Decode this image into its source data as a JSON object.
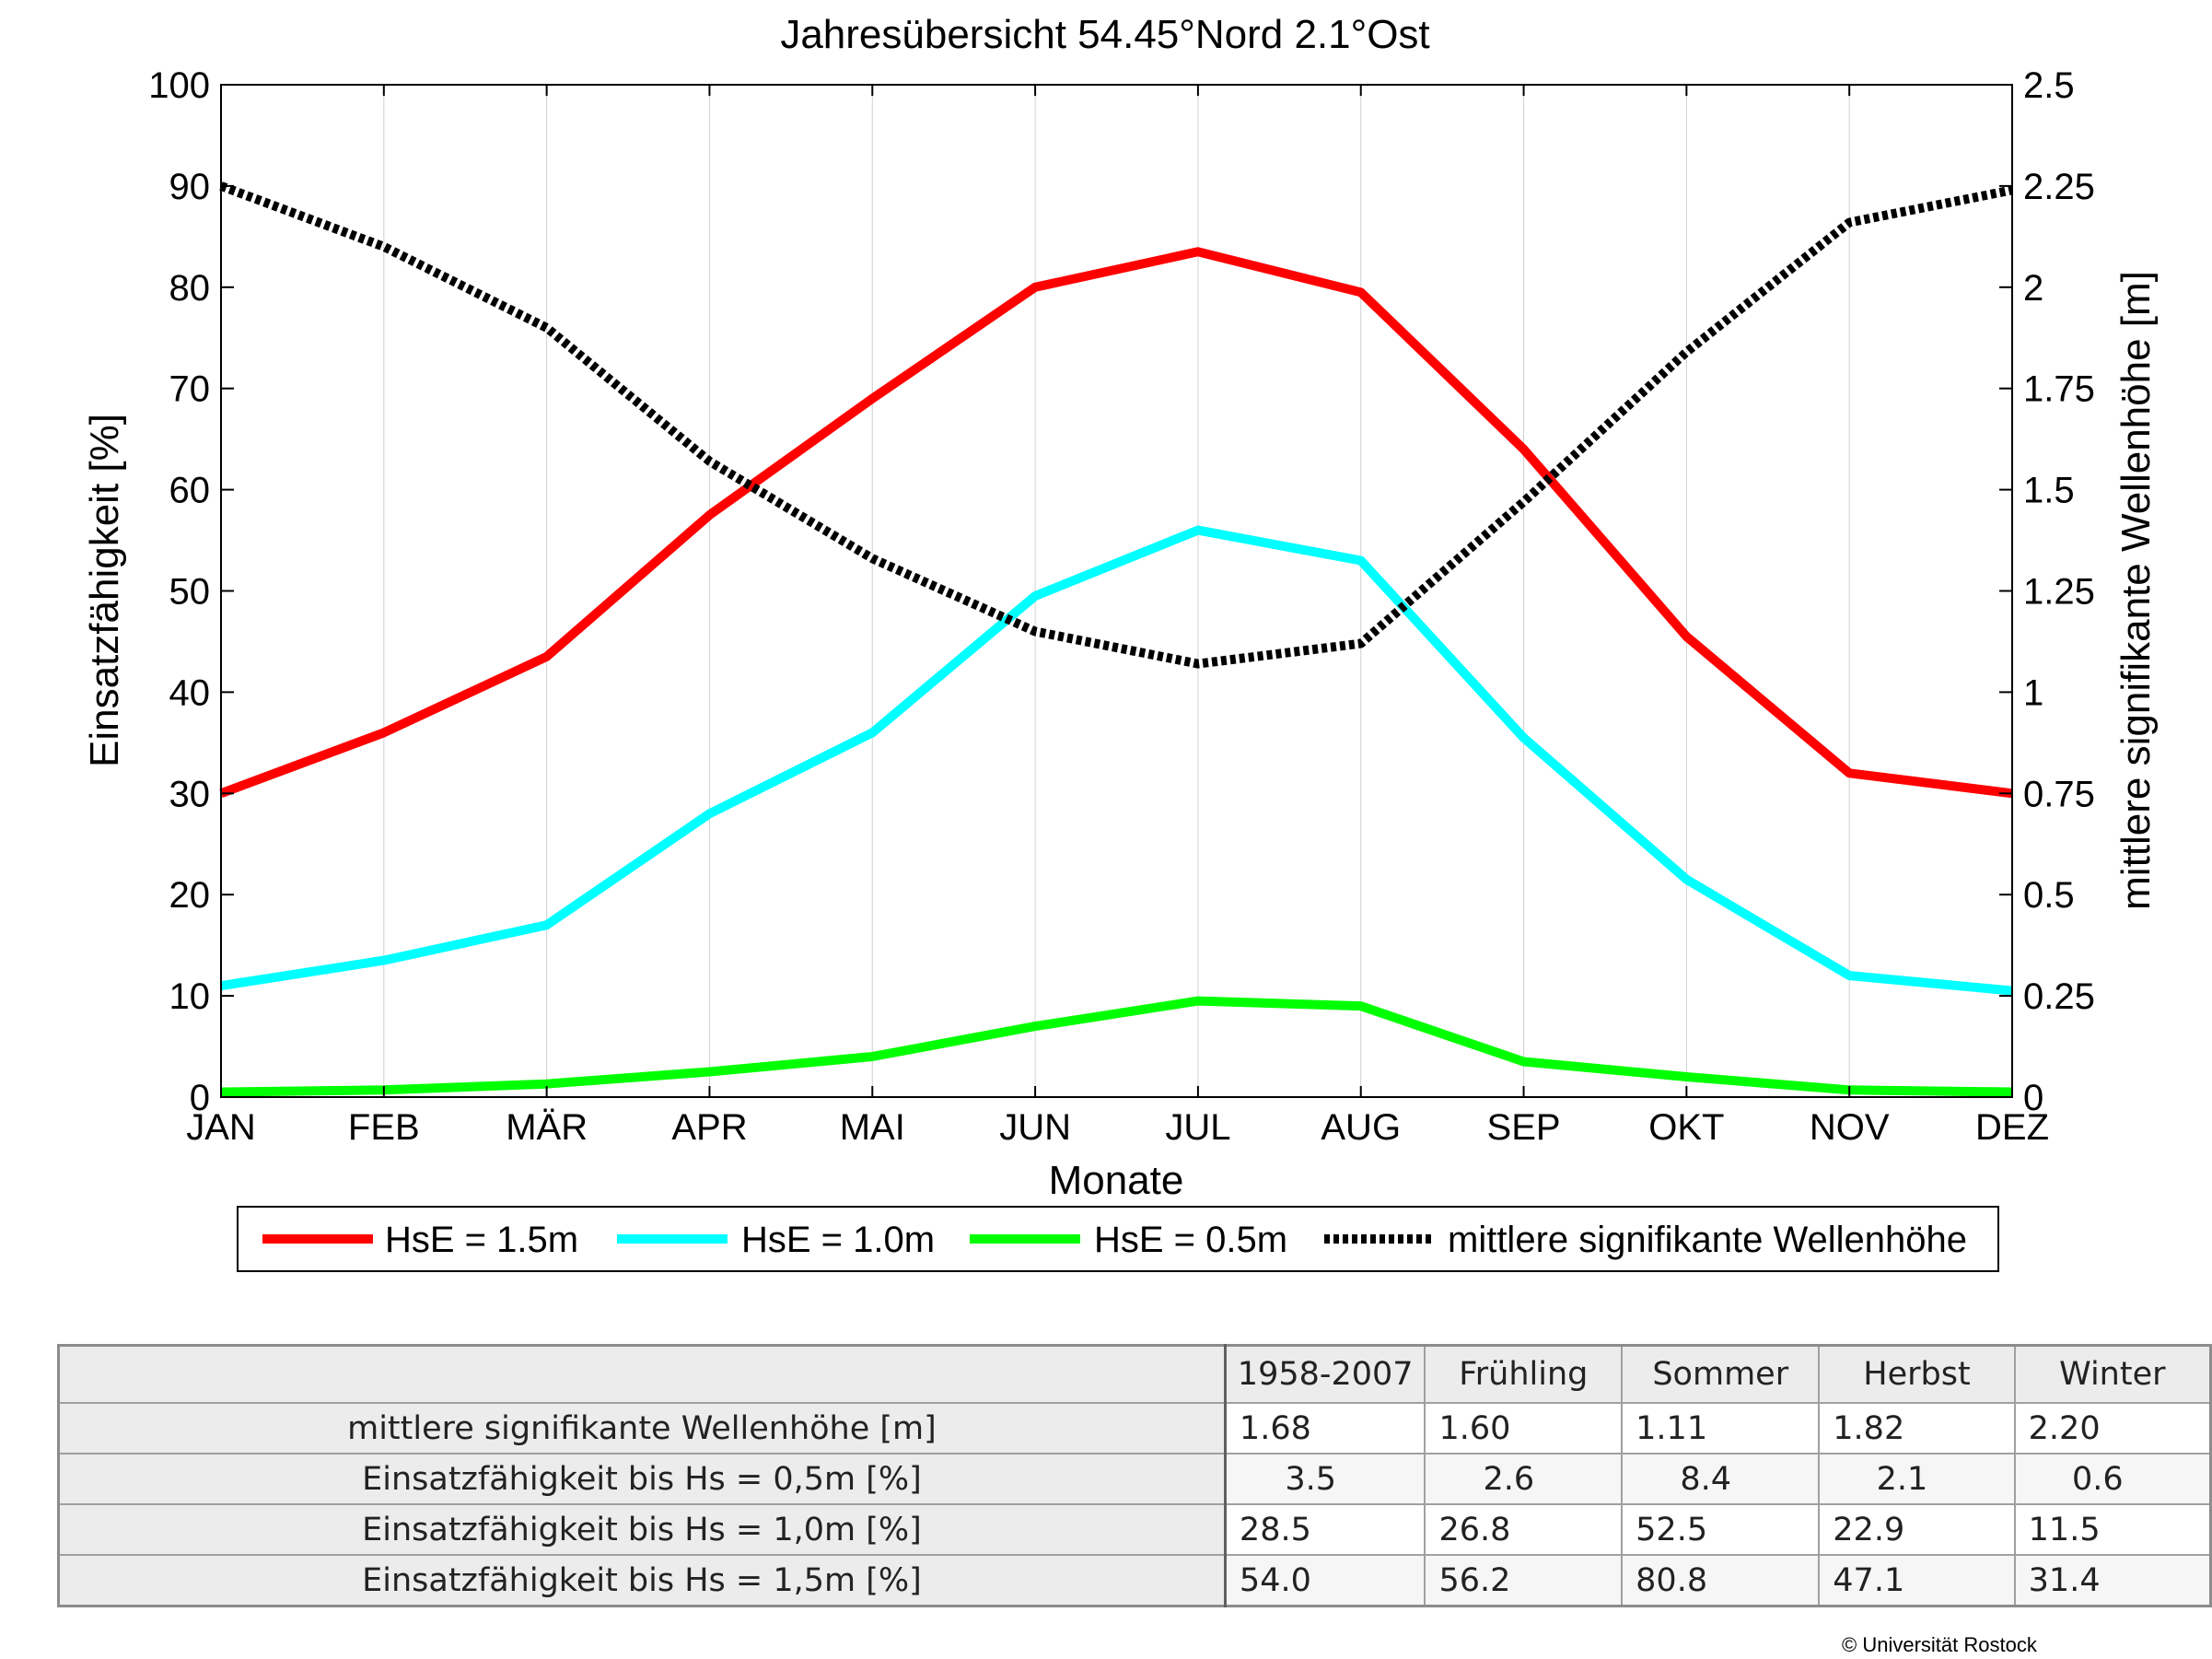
{
  "chart_data": {
    "type": "line",
    "title": "Jahresübersicht  54.45°Nord  2.1°Ost",
    "xlabel": "Monate",
    "ylabel_left": "Einsatzfähigkeit [%]",
    "ylabel_right": "mittlere signifikante Wellenhöhe [m]",
    "categories": [
      "JAN",
      "FEB",
      "MÄR",
      "APR",
      "MAI",
      "JUN",
      "JUL",
      "AUG",
      "SEP",
      "OKT",
      "NOV",
      "DEZ"
    ],
    "ylim_left": [
      0,
      100
    ],
    "ylim_right": [
      0,
      2.5
    ],
    "yticks_left": [
      "0",
      "10",
      "20",
      "30",
      "40",
      "50",
      "60",
      "70",
      "80",
      "90",
      "100"
    ],
    "yticks_right": [
      "0",
      "0.25",
      "0.5",
      "0.75",
      "1",
      "1.25",
      "1.5",
      "1.75",
      "2",
      "2.25",
      "2.5"
    ],
    "grid": "vertical",
    "legend_position": "bottom",
    "series": [
      {
        "name": "HsE = 1.5m",
        "axis": "left",
        "color": "#ff0000",
        "style": "solid",
        "values": [
          30,
          36,
          43.5,
          57.5,
          69,
          80,
          83.5,
          79.5,
          64,
          45.5,
          32,
          30
        ]
      },
      {
        "name": "HsE = 1.0m",
        "axis": "left",
        "color": "#00ffff",
        "style": "solid",
        "values": [
          11,
          13.5,
          17,
          28,
          36,
          49.5,
          56,
          53,
          35.5,
          21.5,
          12,
          10.5
        ]
      },
      {
        "name": "HsE = 0.5m",
        "axis": "left",
        "color": "#00ff00",
        "style": "solid",
        "values": [
          0.5,
          0.7,
          1.3,
          2.5,
          4,
          7,
          9.5,
          9,
          3.5,
          2,
          0.7,
          0.5
        ]
      },
      {
        "name": "mittlere signifikante Wellenhöhe",
        "axis": "right",
        "color": "#000000",
        "style": "dotted",
        "values": [
          2.25,
          2.1,
          1.9,
          1.57,
          1.33,
          1.15,
          1.07,
          1.12,
          1.47,
          1.84,
          2.16,
          2.24
        ]
      }
    ]
  },
  "table": {
    "headers": [
      "1958-2007",
      "Frühling",
      "Sommer",
      "Herbst",
      "Winter"
    ],
    "rows": [
      {
        "label": "mittlere signifikante Wellenhöhe [m]",
        "values": [
          "1.68",
          "1.60",
          "1.11",
          "1.82",
          "2.20"
        ]
      },
      {
        "label": "Einsatzfähigkeit bis Hs = 0,5m [%]",
        "values": [
          "3.5",
          "2.6",
          "8.4",
          "2.1",
          "0.6"
        ]
      },
      {
        "label": "Einsatzfähigkeit bis Hs = 1,0m [%]",
        "values": [
          "28.5",
          "26.8",
          "52.5",
          "22.9",
          "11.5"
        ]
      },
      {
        "label": "Einsatzfähigkeit bis Hs = 1,5m [%]",
        "values": [
          "54.0",
          "56.2",
          "80.8",
          "47.1",
          "31.4"
        ]
      }
    ]
  },
  "copyright": "© Universität Rostock"
}
